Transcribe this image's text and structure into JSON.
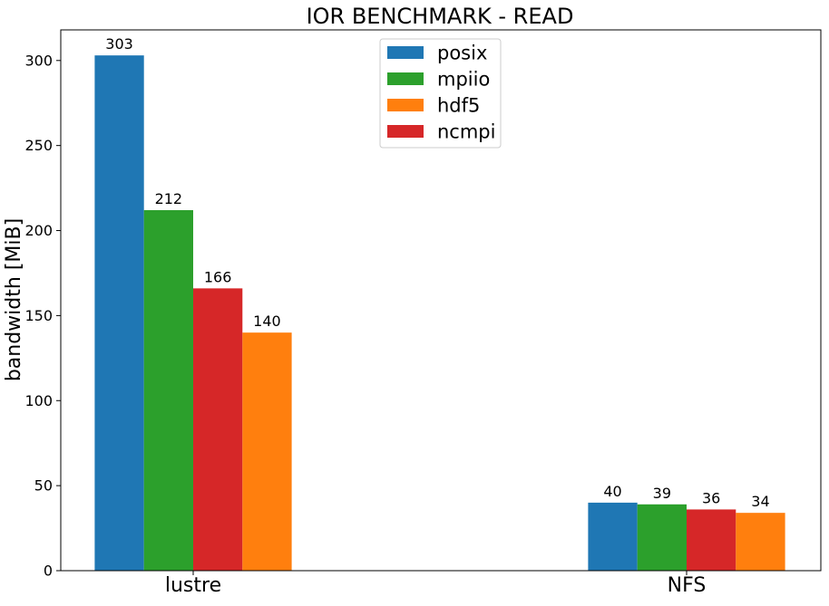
{
  "chart_data": {
    "type": "bar",
    "title": "IOR BENCHMARK - READ",
    "xlabel": "",
    "ylabel": "bandwidth [MiB]",
    "categories": [
      "lustre",
      "NFS"
    ],
    "ylim": [
      0,
      318
    ],
    "yticks": [
      0,
      50,
      100,
      150,
      200,
      250,
      300
    ],
    "grid": false,
    "legend_position": "top-center",
    "legend": [
      {
        "name": "posix",
        "color": "#1f77b4"
      },
      {
        "name": "mpiio",
        "color": "#2ca02c"
      },
      {
        "name": "hdf5",
        "color": "#ff7f0e"
      },
      {
        "name": "ncmpi",
        "color": "#d62728"
      }
    ],
    "bars": [
      [
        {
          "value": 303,
          "label": "303",
          "color": "#1f77b4"
        },
        {
          "value": 212,
          "label": "212",
          "color": "#2ca02c"
        },
        {
          "value": 166,
          "label": "166",
          "color": "#d62728"
        },
        {
          "value": 140,
          "label": "140",
          "color": "#ff7f0e"
        }
      ],
      [
        {
          "value": 40,
          "label": "40",
          "color": "#1f77b4"
        },
        {
          "value": 39,
          "label": "39",
          "color": "#2ca02c"
        },
        {
          "value": 36,
          "label": "36",
          "color": "#d62728"
        },
        {
          "value": 34,
          "label": "34",
          "color": "#ff7f0e"
        }
      ]
    ]
  }
}
